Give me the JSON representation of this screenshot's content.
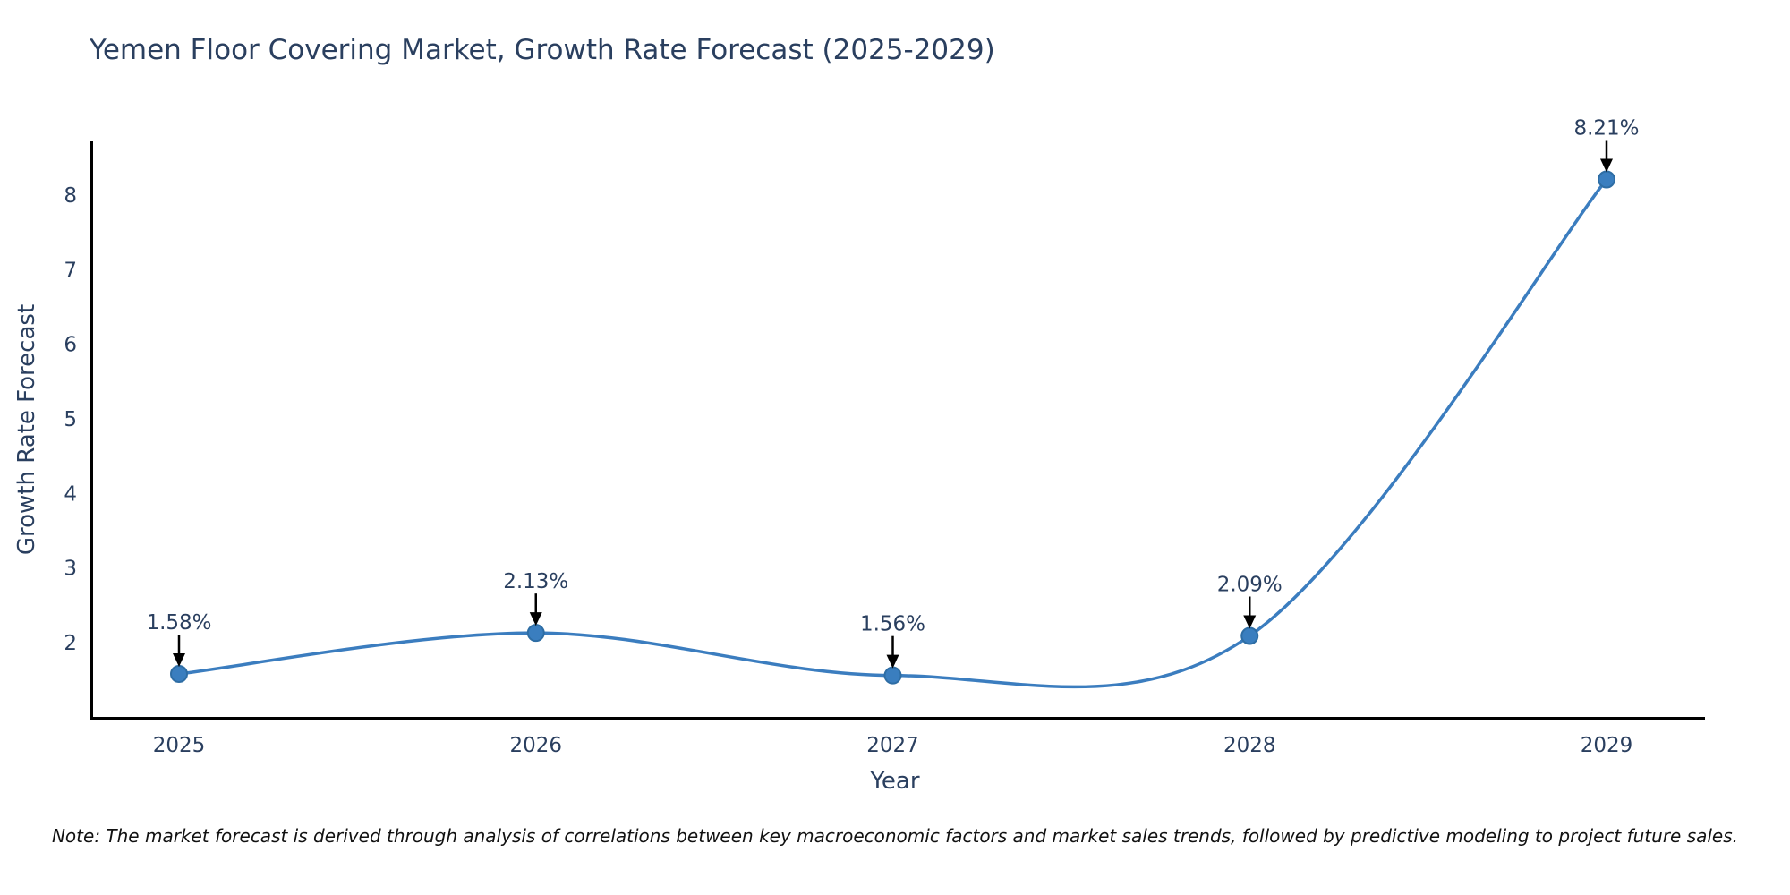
{
  "title": "Yemen Floor Covering Market, Growth Rate Forecast (2025-2029)",
  "note": "Note: The market forecast is derived through analysis of correlations between key macroeconomic factors and market sales trends, followed by predictive modeling to project future sales.",
  "chart_data": {
    "type": "line",
    "title": "Yemen Floor Covering Market, Growth Rate Forecast (2025-2029)",
    "xlabel": "Year",
    "ylabel": "Growth Rate Forecast",
    "categories": [
      "2025",
      "2026",
      "2027",
      "2028",
      "2029"
    ],
    "series": [
      {
        "name": "Growth Rate Forecast",
        "values": [
          1.58,
          2.13,
          1.56,
          2.09,
          8.21
        ]
      }
    ],
    "point_labels": [
      "1.58%",
      "2.13%",
      "1.56%",
      "2.09%",
      "8.21%"
    ],
    "yticks": [
      2,
      3,
      4,
      5,
      6,
      7,
      8
    ],
    "ylim": [
      0.98,
      8.72
    ],
    "grid": false,
    "legend": false,
    "smooth_curve": true,
    "colors": {
      "line": "#3b7dbf",
      "marker_fill": "#3a7ebf",
      "marker_edge": "#2e6da4",
      "axis": "#000000",
      "tick_text": "#2a3f5f",
      "annotation_text": "#2a3f5f",
      "arrow": "#000000"
    }
  }
}
